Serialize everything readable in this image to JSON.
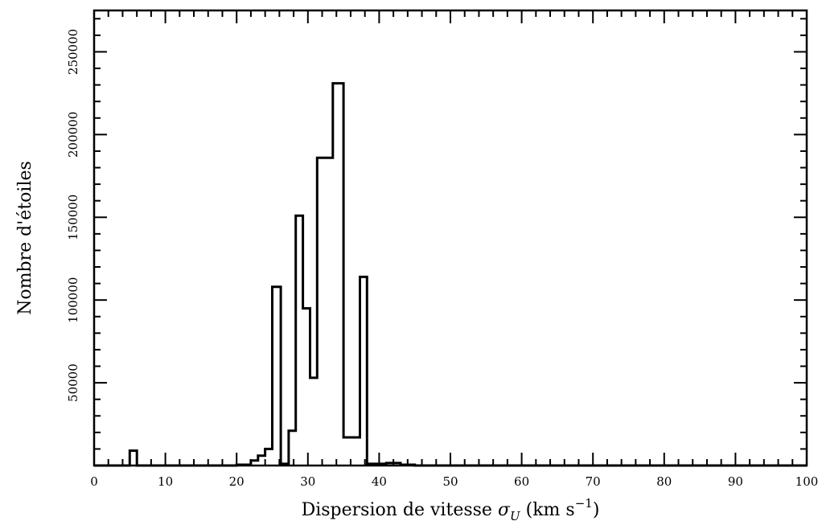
{
  "chart_data": {
    "type": "histogram",
    "title": "",
    "xlabel": "Dispersion de vitesse σU (km s⁻¹)",
    "xlabel_parts": {
      "main": "Dispersion de vitesse ",
      "symbol": "σ",
      "subscript": "U",
      "unit_open": " (km s",
      "unit_exp": "−1",
      "unit_close": ")"
    },
    "ylabel": "Nombre d'étoiles",
    "xlim": [
      0,
      100
    ],
    "ylim": [
      0,
      275000
    ],
    "x_ticks": [
      0,
      10,
      20,
      30,
      40,
      50,
      60,
      70,
      80,
      90,
      100
    ],
    "y_ticks": [
      50000,
      100000,
      150000,
      200000,
      250000
    ],
    "x_tick_labels": [
      "0",
      "10",
      "20",
      "30",
      "40",
      "50",
      "60",
      "70",
      "80",
      "90",
      "100"
    ],
    "y_tick_labels": [
      "50000",
      "100000",
      "150000",
      "200000",
      "250000"
    ],
    "grid": false,
    "bin_edges": [
      0,
      2,
      4,
      5,
      6,
      20,
      22,
      23,
      24,
      25,
      26.2,
      27.3,
      28.3,
      29.3,
      30.3,
      31.3,
      32.5,
      33.5,
      35,
      36.3,
      37.3,
      38.3,
      39.3,
      41,
      43,
      45,
      100
    ],
    "counts": [
      0,
      0,
      0,
      9000,
      0,
      500,
      3000,
      6000,
      10000,
      108000,
      1000,
      21000,
      151000,
      95000,
      53000,
      186000,
      186000,
      231000,
      17000,
      17000,
      114000,
      1000,
      1000,
      1500,
      500,
      0
    ]
  }
}
